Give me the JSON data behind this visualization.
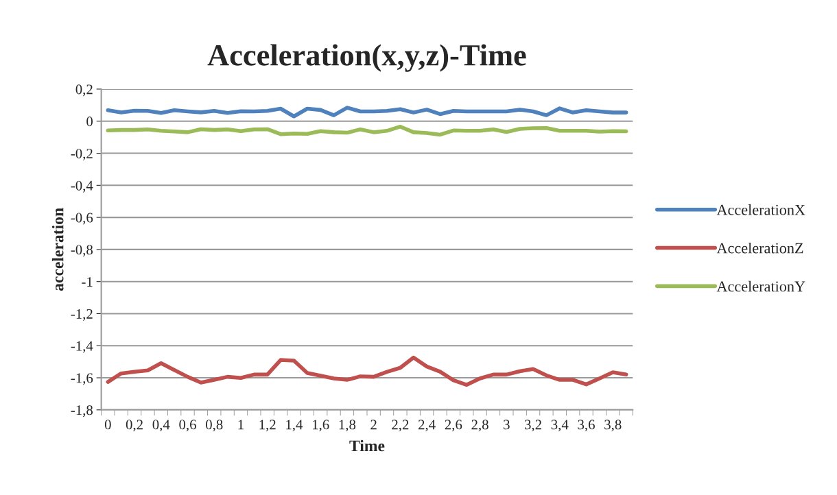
{
  "chart_data": {
    "type": "line",
    "title": "Acceleration(x,y,z)-Time",
    "xlabel": "Time",
    "ylabel": "acceleration",
    "categories": [
      "0",
      null,
      "0,2",
      null,
      "0,4",
      null,
      "0,6",
      null,
      "0,8",
      null,
      "1",
      null,
      "1,2",
      null,
      "1,4",
      null,
      "1,6",
      null,
      "1,8",
      null,
      "2",
      null,
      "2,2",
      null,
      "2,4",
      null,
      "2,6",
      null,
      "2,8",
      null,
      "3",
      null,
      "3,2",
      null,
      "3,4",
      null,
      "3,6",
      null,
      "3,8",
      null
    ],
    "series": [
      {
        "name": "AccelerationX",
        "color": "#4f81bd",
        "values": [
          0.068,
          0.054,
          0.065,
          0.064,
          0.051,
          0.068,
          0.061,
          0.055,
          0.064,
          0.051,
          0.062,
          0.061,
          0.064,
          0.078,
          0.03,
          0.078,
          0.07,
          0.037,
          0.084,
          0.061,
          0.061,
          0.064,
          0.075,
          0.054,
          0.072,
          0.044,
          0.064,
          0.061,
          0.061,
          0.061,
          0.061,
          0.072,
          0.061,
          0.037,
          0.08,
          0.054,
          0.068,
          0.061,
          0.054,
          0.054
        ]
      },
      {
        "name": "AccelerationZ",
        "color": "#c0504d",
        "values": [
          -1.626,
          -1.573,
          -1.562,
          -1.554,
          -1.509,
          -1.552,
          -1.594,
          -1.63,
          -1.613,
          -1.594,
          -1.601,
          -1.58,
          -1.58,
          -1.489,
          -1.493,
          -1.57,
          -1.587,
          -1.604,
          -1.613,
          -1.591,
          -1.594,
          -1.563,
          -1.538,
          -1.474,
          -1.53,
          -1.562,
          -1.615,
          -1.644,
          -1.604,
          -1.58,
          -1.58,
          -1.559,
          -1.545,
          -1.585,
          -1.613,
          -1.613,
          -1.641,
          -1.604,
          -1.566,
          -1.58
        ]
      },
      {
        "name": "AccelerationY",
        "color": "#9bbb59",
        "values": [
          -0.058,
          -0.055,
          -0.055,
          -0.051,
          -0.06,
          -0.064,
          -0.069,
          -0.05,
          -0.055,
          -0.051,
          -0.062,
          -0.051,
          -0.05,
          -0.081,
          -0.077,
          -0.079,
          -0.062,
          -0.069,
          -0.072,
          -0.051,
          -0.069,
          -0.06,
          -0.034,
          -0.069,
          -0.074,
          -0.084,
          -0.058,
          -0.06,
          -0.06,
          -0.051,
          -0.067,
          -0.048,
          -0.044,
          -0.043,
          -0.06,
          -0.06,
          -0.06,
          -0.065,
          -0.062,
          -0.063
        ]
      }
    ],
    "ylim": [
      -1.8,
      0.2
    ],
    "yticks": [
      {
        "value": -1.8,
        "label": "-1,8"
      },
      {
        "value": -1.6,
        "label": "-1,6"
      },
      {
        "value": -1.4,
        "label": "-1,4"
      },
      {
        "value": -1.2,
        "label": "-1,2"
      },
      {
        "value": -1,
        "label": "-1"
      },
      {
        "value": -0.8,
        "label": "-0,8"
      },
      {
        "value": -0.6,
        "label": "-0,6"
      },
      {
        "value": -0.4,
        "label": "-0,4"
      },
      {
        "value": -0.2,
        "label": "-0,2"
      },
      {
        "value": 0,
        "label": "0"
      },
      {
        "value": 0.2,
        "label": "0,2"
      }
    ],
    "grid": "y",
    "legend": "right",
    "marker": "none",
    "line_style": "solid"
  }
}
